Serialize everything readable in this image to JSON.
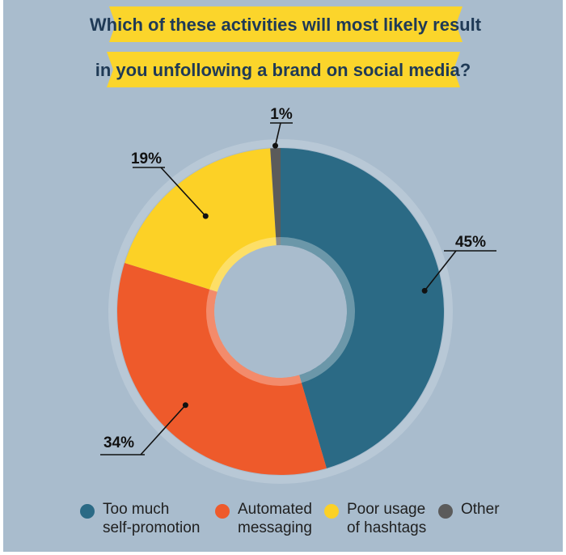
{
  "title": {
    "line1": "Which of these activities will most likely result",
    "line2": "in you unfollowing a brand on social media?"
  },
  "colors": {
    "background": "#a9bccd",
    "banner": "#fbd52b",
    "banner_text": "#1f3a56"
  },
  "chart_data": {
    "type": "pie",
    "donut": true,
    "categories": [
      "Too much self-promotion",
      "Automated messaging",
      "Poor usage of hashtags",
      "Other"
    ],
    "values": [
      45,
      34,
      19,
      1
    ],
    "data_labels": [
      "45%",
      "34%",
      "19%",
      "1%"
    ],
    "colors": [
      "#2b6a85",
      "#ee5a2b",
      "#fcd126",
      "#5b5b5b"
    ],
    "legend": {
      "placement": "bottom",
      "items": [
        {
          "lines": [
            "Too much",
            "self-promotion"
          ],
          "color": "#2b6a85"
        },
        {
          "lines": [
            "Automated",
            "messaging"
          ],
          "color": "#ee5a2b"
        },
        {
          "lines": [
            "Poor usage",
            "of hashtags"
          ],
          "color": "#fcd126"
        },
        {
          "lines": [
            "Other"
          ],
          "color": "#5b5b5b"
        }
      ]
    }
  }
}
